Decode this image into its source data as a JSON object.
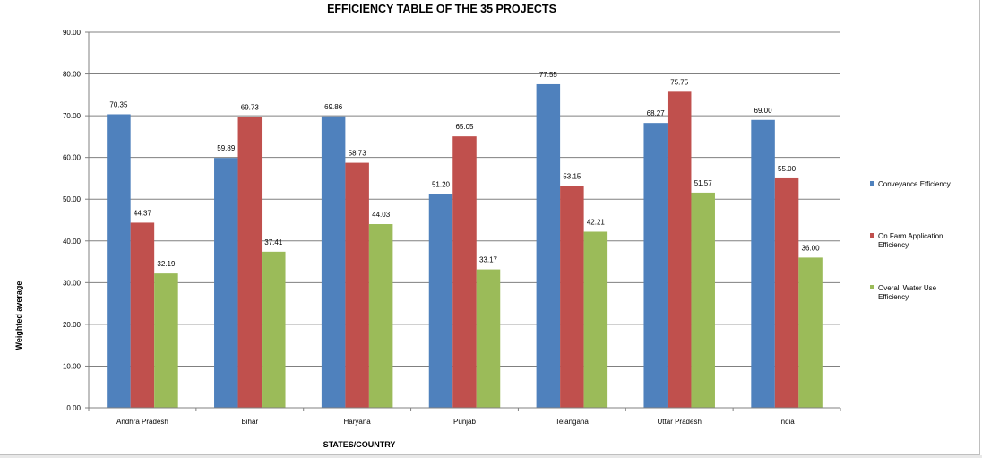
{
  "chart_data": {
    "type": "bar",
    "title": "EFFICIENCY TABLE OF THE 35  PROJECTS",
    "xlabel": "STATES/COUNTRY",
    "ylabel": "Weighted average",
    "ylim": [
      0,
      90
    ],
    "ytick_step": 10,
    "ytick_decimals": 2,
    "grid": true,
    "legend_position": "right",
    "categories": [
      "Andhra Pradesh",
      "Bihar",
      "Haryana",
      "Punjab",
      "Telangana",
      "Uttar Pradesh",
      "India"
    ],
    "series": [
      {
        "name": "Conveyance Efficiency",
        "color": "#4f81bd",
        "values": [
          70.35,
          59.89,
          69.86,
          51.2,
          77.55,
          68.27,
          69.0
        ],
        "labels": [
          "70.35",
          "59.89",
          "69.86",
          "51.20",
          "77.55",
          "68.27",
          "69.00"
        ]
      },
      {
        "name": "On Farm Application Efficiency",
        "color": "#c0504d",
        "values": [
          44.37,
          69.73,
          58.73,
          65.05,
          53.15,
          75.75,
          55.0
        ],
        "labels": [
          "44.37",
          "69.73",
          "58.73",
          "65.05",
          "53.15",
          "75.75",
          "55.00"
        ]
      },
      {
        "name": "Overall Water  Use Efficiency",
        "color": "#9bbb59",
        "values": [
          32.19,
          37.41,
          44.03,
          33.17,
          42.21,
          51.57,
          36.0
        ],
        "labels": [
          "32.19",
          "37.41",
          "44.03",
          "33.17",
          "42.21",
          "51.57",
          "36.00"
        ]
      }
    ]
  }
}
